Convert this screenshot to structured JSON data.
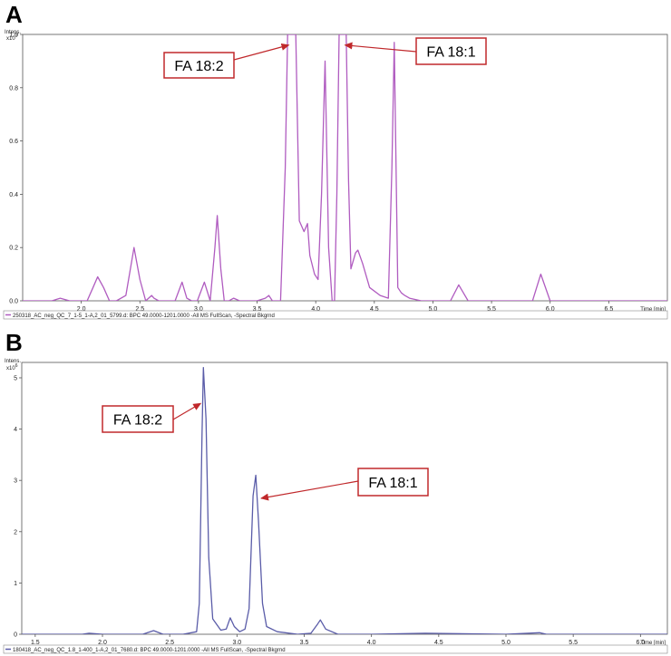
{
  "chart_data": [
    {
      "type": "line",
      "panel_label": "A",
      "ylabel": "Intens.",
      "y_multiplier": "x10",
      "y_exponent": "7",
      "xlabel": "Time [min]",
      "xlim": [
        1.5,
        7.0
      ],
      "ylim": [
        0,
        1.0
      ],
      "xticks": [
        2.0,
        2.5,
        3.0,
        3.5,
        4.0,
        4.5,
        5.0,
        5.5,
        6.0,
        6.5
      ],
      "xtick_labels": [
        "2.0",
        "2.5",
        "3.0",
        "3.5",
        "4.0",
        "4.5",
        "5.0",
        "5.5",
        "6.0",
        "6.5"
      ],
      "yticks": [
        0.0,
        0.2,
        0.4,
        0.6,
        0.8,
        1.0
      ],
      "ytick_labels": [
        "0.0",
        "0.2",
        "0.4",
        "0.6",
        "0.8",
        "1.0"
      ],
      "legend": "250318_AC_neg_QC_7_1-5_1-A,2_01_5799.d: BPC 49.0000-1201.0000 -All MS FullScan, -Spectral Bkgrnd",
      "color": "#b05cc0",
      "series": [
        {
          "x": [
            1.5,
            1.75,
            1.82,
            1.9,
            2.05,
            2.1,
            2.14,
            2.19,
            2.24,
            2.3,
            2.38,
            2.45,
            2.5,
            2.55,
            2.6,
            2.62,
            2.66,
            2.72,
            2.8,
            2.86,
            2.9,
            2.94,
            2.99,
            3.05,
            3.1,
            3.14,
            3.16,
            3.19,
            3.22,
            3.26,
            3.3,
            3.35,
            3.38,
            3.42,
            3.5,
            3.57,
            3.6,
            3.63,
            3.7,
            3.74,
            3.76,
            3.8,
            3.83,
            3.86,
            3.9,
            3.93,
            3.95,
            3.99,
            4.02,
            4.05,
            4.08,
            4.11,
            4.14,
            4.16,
            4.18,
            4.2,
            4.22,
            4.26,
            4.28,
            4.3,
            4.34,
            4.36,
            4.4,
            4.46,
            4.55,
            4.62,
            4.65,
            4.67,
            4.7,
            4.73,
            4.76,
            4.8,
            4.9,
            5.15,
            5.22,
            5.3,
            5.5,
            5.85,
            5.92,
            6.0,
            6.3,
            6.6,
            7.0
          ],
          "y": [
            0.0,
            0.0,
            0.01,
            0.0,
            0.0,
            0.05,
            0.09,
            0.05,
            0.0,
            0.0,
            0.02,
            0.2,
            0.08,
            0.0,
            0.02,
            0.01,
            0.0,
            0.0,
            0.0,
            0.07,
            0.01,
            0.0,
            0.0,
            0.07,
            0.0,
            0.2,
            0.32,
            0.12,
            0.0,
            0.0,
            0.01,
            0.0,
            0.0,
            0.0,
            0.0,
            0.01,
            0.02,
            0.0,
            0.0,
            0.5,
            1.0,
            1.0,
            1.0,
            0.3,
            0.26,
            0.29,
            0.17,
            0.1,
            0.08,
            0.4,
            0.9,
            0.2,
            0.0,
            0.0,
            0.4,
            1.0,
            1.0,
            1.0,
            0.45,
            0.12,
            0.18,
            0.19,
            0.14,
            0.05,
            0.02,
            0.01,
            0.5,
            0.97,
            0.05,
            0.03,
            0.02,
            0.01,
            0.0,
            0.0,
            0.06,
            0.0,
            0.0,
            0.0,
            0.1,
            0.0,
            0.0,
            0.0,
            0.0
          ]
        }
      ],
      "annotations": [
        {
          "text": "FA 18:2",
          "arrow_to": [
            3.77,
            0.96
          ]
        },
        {
          "text": "FA 18:1",
          "arrow_to": [
            4.25,
            0.96
          ]
        }
      ]
    },
    {
      "type": "line",
      "panel_label": "B",
      "ylabel": "Intens.",
      "y_multiplier": "x10",
      "y_exponent": "6",
      "xlabel": "Time [min]",
      "xlim": [
        1.4,
        6.2
      ],
      "ylim": [
        0,
        5.3
      ],
      "xticks": [
        1.5,
        2.0,
        2.5,
        3.0,
        3.5,
        4.0,
        4.5,
        5.0,
        5.5,
        6.0
      ],
      "xtick_labels": [
        "1.5",
        "2.0",
        "2.5",
        "3.0",
        "3.5",
        "4.0",
        "4.5",
        "5.0",
        "5.5",
        "6.0"
      ],
      "yticks": [
        0,
        1,
        2,
        3,
        4,
        5
      ],
      "ytick_labels": [
        "0",
        "1",
        "2",
        "3",
        "4",
        "5"
      ],
      "legend": "180418_AC_neg_QC_1.8_1-400_1-A,2_01_7680.d: BPC 49.0000-1201.0000 -All MS FullScan, -Spectral Bkgrnd",
      "color": "#5a5ca8",
      "series": [
        {
          "x": [
            1.4,
            1.85,
            1.9,
            2.0,
            2.3,
            2.38,
            2.45,
            2.6,
            2.7,
            2.72,
            2.74,
            2.75,
            2.77,
            2.79,
            2.82,
            2.88,
            2.92,
            2.95,
            2.98,
            3.02,
            3.06,
            3.09,
            3.12,
            3.14,
            3.16,
            3.19,
            3.22,
            3.3,
            3.45,
            3.55,
            3.6,
            3.62,
            3.66,
            3.75,
            4.0,
            4.4,
            5.0,
            5.25,
            5.3,
            5.5,
            6.2
          ],
          "y": [
            0.0,
            0.0,
            0.02,
            0.0,
            0.0,
            0.07,
            0.0,
            0.0,
            0.05,
            0.6,
            3.9,
            5.2,
            4.2,
            1.5,
            0.3,
            0.08,
            0.1,
            0.32,
            0.15,
            0.05,
            0.1,
            0.5,
            2.7,
            3.1,
            2.2,
            0.6,
            0.15,
            0.05,
            0.0,
            0.02,
            0.2,
            0.28,
            0.1,
            0.0,
            0.0,
            0.02,
            0.0,
            0.03,
            0.0,
            0.0,
            0.0
          ]
        }
      ],
      "annotations": [
        {
          "text": "FA 18:2",
          "arrow_to": [
            2.73,
            4.5
          ]
        },
        {
          "text": "FA 18:1",
          "arrow_to": [
            3.18,
            2.65
          ]
        }
      ]
    }
  ]
}
